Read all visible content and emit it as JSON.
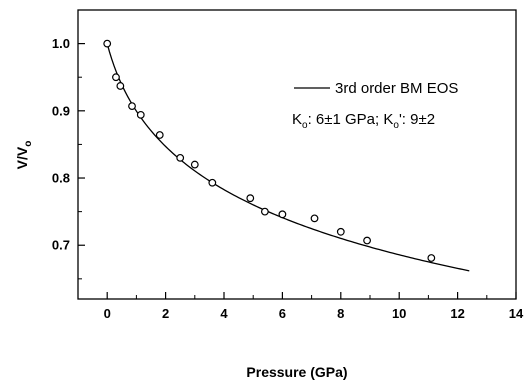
{
  "chart_data": {
    "type": "scatter",
    "xlabel": "Pressure (GPa)",
    "ylabel": {
      "main": "V/V",
      "sub": "o"
    },
    "xlim": [
      -1,
      14
    ],
    "ylim": [
      0.62,
      1.05
    ],
    "x_ticks": [
      0,
      2,
      4,
      6,
      8,
      10,
      12,
      14
    ],
    "y_ticks": [
      0.7,
      0.8,
      0.9,
      1.0
    ],
    "x_tick_labels": [
      "0",
      "2",
      "4",
      "6",
      "8",
      "10",
      "12",
      "14"
    ],
    "y_tick_labels": [
      "0.7",
      "0.8",
      "0.9",
      "1.0"
    ],
    "grid": false,
    "legend_position": "top-right",
    "fit": {
      "name": "3rd order BM EOS",
      "K0": 6,
      "K0_prime": 9,
      "x_range": [
        0,
        12.4
      ]
    },
    "annotation": {
      "k0_sym": "K",
      "k0_sub": "o",
      "k0_text": ": 6±1 GPa; ",
      "kp_sym": "K",
      "kp_sub": "o",
      "kp_text": "': 9±2"
    },
    "series": [
      {
        "marker": "open-circle",
        "x": [
          0,
          0.3,
          0.45,
          0.85,
          1.15,
          1.8,
          2.5,
          3.0,
          3.6,
          4.9,
          5.4,
          6.0,
          7.1,
          8.0,
          8.9,
          11.1
        ],
        "y": [
          1.0,
          0.95,
          0.937,
          0.907,
          0.894,
          0.864,
          0.83,
          0.82,
          0.793,
          0.77,
          0.75,
          0.746,
          0.74,
          0.72,
          0.707,
          0.681
        ]
      }
    ]
  }
}
